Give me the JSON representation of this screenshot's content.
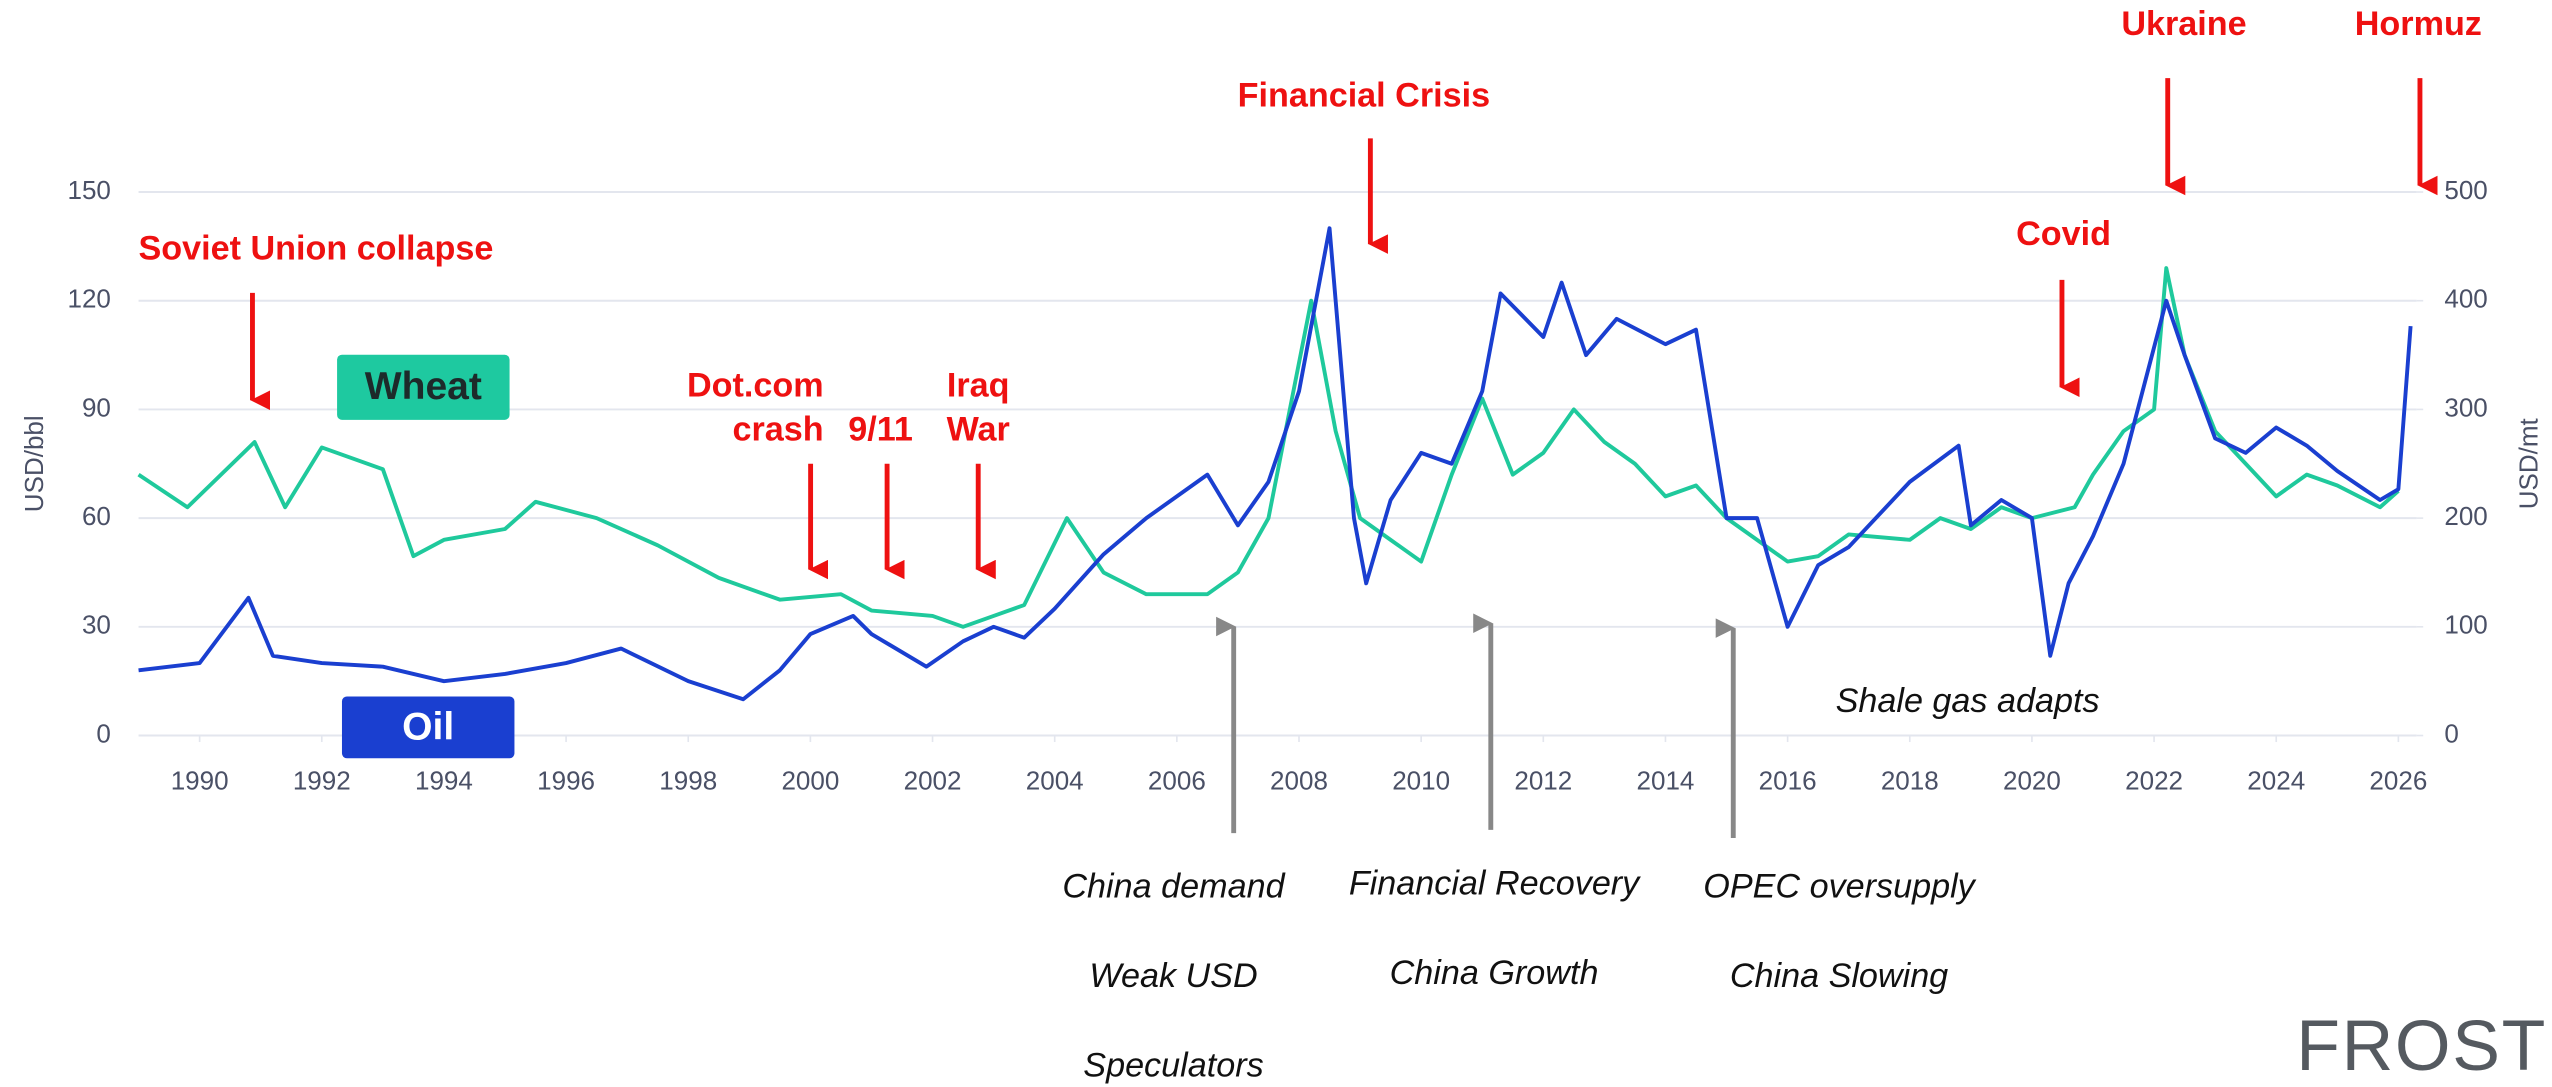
{
  "chart_data": {
    "type": "line",
    "ylabel": "USD/bbl",
    "y2label": "USD/mt",
    "xlim": [
      1989,
      2026.3
    ],
    "xticks": [
      1990,
      1992,
      1994,
      1996,
      1998,
      2000,
      2002,
      2004,
      2006,
      2008,
      2010,
      2012,
      2014,
      2016,
      2018,
      2020,
      2022,
      2024,
      2026
    ],
    "ylim": [
      0,
      150
    ],
    "yticks": [
      0,
      30,
      60,
      90,
      120,
      150
    ],
    "y2lim": [
      0,
      500
    ],
    "y2ticks": [
      0,
      100,
      200,
      300,
      400,
      500
    ],
    "grid": true,
    "series": [
      {
        "name": "Oil",
        "color": "#1a3fd0",
        "axis": "y",
        "x": [
          1989,
          1990,
          1990.8,
          1991.2,
          1992,
          1993,
          1994,
          1995,
          1996,
          1996.9,
          1998,
          1998.9,
          1999.5,
          2000,
          2000.7,
          2001,
          2001.9,
          2002.5,
          2003,
          2003.5,
          2004,
          2004.8,
          2005.5,
          2006.5,
          2007,
          2007.5,
          2008,
          2008.5,
          2008.9,
          2009.1,
          2009.5,
          2010,
          2010.5,
          2011,
          2011.3,
          2012,
          2012.3,
          2012.7,
          2013.2,
          2014,
          2014.5,
          2015,
          2015.5,
          2016,
          2016.5,
          2017,
          2018,
          2018.8,
          2019,
          2019.5,
          2020,
          2020.3,
          2020.6,
          2021,
          2021.5,
          2022.2,
          2022.5,
          2023,
          2023.5,
          2024,
          2024.5,
          2025,
          2025.7,
          2026,
          2026.2
        ],
        "values": [
          18,
          20,
          38,
          22,
          20,
          19,
          15,
          17,
          20,
          24,
          15,
          10,
          18,
          28,
          33,
          28,
          19,
          26,
          30,
          27,
          35,
          50,
          60,
          72,
          58,
          70,
          95,
          140,
          60,
          42,
          65,
          78,
          75,
          95,
          122,
          110,
          125,
          105,
          115,
          108,
          112,
          60,
          60,
          30,
          47,
          52,
          70,
          80,
          58,
          65,
          60,
          22,
          42,
          55,
          75,
          120,
          105,
          82,
          78,
          85,
          80,
          73,
          65,
          68,
          113
        ]
      },
      {
        "name": "Wheat",
        "color": "#1fc99c",
        "axis": "y2",
        "x": [
          1989,
          1989.8,
          1990.9,
          1991.4,
          1992,
          1993,
          1993.5,
          1994,
          1995,
          1995.5,
          1996.5,
          1997.5,
          1998.5,
          1999.5,
          2000.5,
          2001,
          2002,
          2002.5,
          2003,
          2003.5,
          2004.2,
          2004.8,
          2005.5,
          2006.5,
          2007,
          2007.5,
          2008.2,
          2008.6,
          2009,
          2009.5,
          2010,
          2010.5,
          2011,
          2011.5,
          2012,
          2012.5,
          2013,
          2013.5,
          2014,
          2014.5,
          2015,
          2015.5,
          2016,
          2016.5,
          2017,
          2018,
          2018.5,
          2019,
          2019.5,
          2020,
          2020.7,
          2021,
          2021.5,
          2022,
          2022.2,
          2022.5,
          2023,
          2023.5,
          2024,
          2024.5,
          2025,
          2025.7,
          2026
        ],
        "values": [
          240,
          210,
          270,
          210,
          265,
          245,
          165,
          180,
          190,
          215,
          200,
          175,
          145,
          125,
          130,
          115,
          110,
          100,
          110,
          120,
          200,
          150,
          130,
          130,
          150,
          200,
          400,
          280,
          200,
          180,
          160,
          240,
          310,
          240,
          260,
          300,
          270,
          250,
          220,
          230,
          200,
          180,
          160,
          165,
          185,
          180,
          200,
          190,
          210,
          200,
          210,
          240,
          280,
          300,
          430,
          350,
          280,
          250,
          220,
          240,
          230,
          210,
          225
        ]
      }
    ],
    "annotations": [
      {
        "lines": [
          "Soviet Union collapse"
        ]
      },
      {
        "lines": [
          "Dot.com",
          "crash"
        ]
      },
      {
        "lines": [
          "9/11"
        ]
      },
      {
        "lines": [
          "Iraq",
          "War"
        ]
      },
      {
        "lines": [
          "Financial Crisis"
        ]
      },
      {
        "lines": [
          "Covid"
        ]
      },
      {
        "lines": [
          "Ukraine"
        ]
      },
      {
        "lines": [
          "Hormuz"
        ]
      },
      {
        "lines": [
          "China demand",
          "Weak USD",
          "Speculators"
        ]
      },
      {
        "lines": [
          "Financial Recovery",
          "China Growth"
        ]
      },
      {
        "lines": [
          "OPEC oversupply",
          "China Slowing"
        ]
      },
      {
        "lines": [
          "Shale gas adapts"
        ]
      }
    ],
    "logo": "FROST"
  }
}
